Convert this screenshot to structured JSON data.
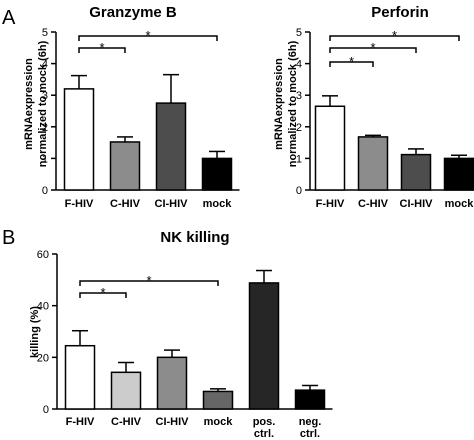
{
  "panel_labels": {
    "a": "A",
    "b": "B"
  },
  "chart_data": [
    {
      "type": "bar",
      "title": "Granzyme B",
      "ylabel_line1": "mRNAexpression",
      "ylabel_line2": "normalized to mock (6h)",
      "xlabel": "",
      "categories": [
        "F-HIV",
        "C-HIV",
        "CI-HIV",
        "mock"
      ],
      "values": [
        3.2,
        1.52,
        2.75,
        1.0
      ],
      "errors": [
        0.42,
        0.16,
        0.9,
        0.22
      ],
      "bar_colors": [
        "#ffffff",
        "#8c8c8c",
        "#4d4d4d",
        "#000000"
      ],
      "ylim": [
        0,
        5
      ],
      "yticks": [
        0,
        1,
        2,
        3,
        4,
        5
      ],
      "significance": [
        {
          "from": "F-HIV",
          "to": "C-HIV",
          "label": "*"
        },
        {
          "from": "F-HIV",
          "to": "mock",
          "label": "*"
        }
      ]
    },
    {
      "type": "bar",
      "title": "Perforin",
      "ylabel_line1": "mRNAexpression",
      "ylabel_line2": "normalized to mock (6h)",
      "xlabel": "",
      "categories": [
        "F-HIV",
        "C-HIV",
        "CI-HIV",
        "mock"
      ],
      "values": [
        2.65,
        1.68,
        1.12,
        1.0
      ],
      "errors": [
        0.33,
        0.05,
        0.18,
        0.1
      ],
      "bar_colors": [
        "#ffffff",
        "#8c8c8c",
        "#4d4d4d",
        "#000000"
      ],
      "ylim": [
        0,
        5
      ],
      "yticks": [
        0,
        1,
        2,
        3,
        4,
        5
      ],
      "significance": [
        {
          "from": "F-HIV",
          "to": "C-HIV",
          "label": "*"
        },
        {
          "from": "F-HIV",
          "to": "CI-HIV",
          "label": "*"
        },
        {
          "from": "F-HIV",
          "to": "mock",
          "label": "*"
        }
      ]
    },
    {
      "type": "bar",
      "title": "NK killing",
      "ylabel_line1": "killing (%)",
      "ylabel_line2": "",
      "xlabel": "",
      "categories": [
        "F-HIV",
        "C-HIV",
        "CI-HIV",
        "mock",
        "pos. ctrl.",
        "neg. ctrl."
      ],
      "values": [
        24.5,
        14.2,
        20.0,
        6.8,
        48.8,
        7.3
      ],
      "errors": [
        5.8,
        3.8,
        2.8,
        1.0,
        4.8,
        1.8
      ],
      "bar_colors": [
        "#ffffff",
        "#cccccc",
        "#8c8c8c",
        "#666666",
        "#262626",
        "#000000"
      ],
      "ylim": [
        0,
        60
      ],
      "yticks": [
        0,
        20,
        40,
        60
      ],
      "significance": [
        {
          "from": "F-HIV",
          "to": "C-HIV",
          "label": "*"
        },
        {
          "from": "F-HIV",
          "to": "mock",
          "label": "*"
        }
      ]
    }
  ]
}
